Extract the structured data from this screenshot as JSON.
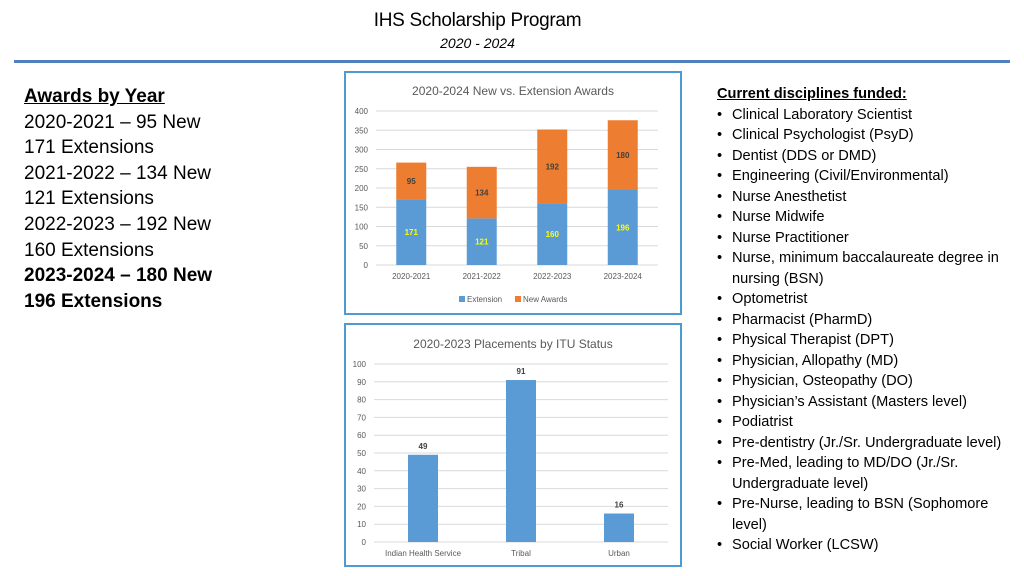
{
  "header": {
    "title": "IHS Scholarship Program",
    "subtitle": "2020 - 2024"
  },
  "awards": {
    "heading": "Awards by Year",
    "lines": [
      {
        "text": "2020-2021 – 95 New",
        "bold": false
      },
      {
        "text": "171 Extensions",
        "bold": false
      },
      {
        "text": "2021-2022 – 134 New",
        "bold": false
      },
      {
        "text": "121 Extensions",
        "bold": false
      },
      {
        "text": "2022-2023 – 192 New",
        "bold": false
      },
      {
        "text": "160 Extensions",
        "bold": false
      },
      {
        "text": "2023-2024 – 180 New",
        "bold": true
      },
      {
        "text": "196 Extensions",
        "bold": true
      }
    ]
  },
  "disciplines": {
    "heading": "Current disciplines funded:",
    "items": [
      "Clinical Laboratory Scientist",
      "Clinical Psychologist (PsyD)",
      "Dentist (DDS or DMD)",
      "Engineering (Civil/Environmental)",
      "Nurse Anesthetist",
      "Nurse Midwife",
      "Nurse Practitioner",
      "Nurse, minimum baccalaureate degree in nursing (BSN)",
      "Optometrist",
      "Pharmacist (PharmD)",
      "Physical Therapist (DPT)",
      "Physician, Allopathy (MD)",
      "Physician, Osteopathy (DO)",
      "Physician’s Assistant (Masters level)",
      "Podiatrist",
      "Pre-dentistry (Jr./Sr. Undergraduate level)",
      "Pre-Med, leading to MD/DO (Jr./Sr. Undergraduate level)",
      "Pre-Nurse, leading to BSN (Sophomore level)",
      "Social Worker (LCSW)"
    ]
  },
  "chart_data": [
    {
      "type": "bar",
      "stacked": true,
      "title": "2020-2024 New vs. Extension Awards",
      "categories": [
        "2020-2021",
        "2021-2022",
        "2022-2023",
        "2023-2024"
      ],
      "series": [
        {
          "name": "Extension",
          "values": [
            171,
            121,
            160,
            196
          ],
          "color": "#5b9bd5",
          "label_color": "#ffff00"
        },
        {
          "name": "New Awards",
          "values": [
            95,
            134,
            192,
            180
          ],
          "color": "#ed7d31",
          "label_color": "#404040"
        }
      ],
      "ylim": [
        0,
        400
      ],
      "yticks": [
        0,
        50,
        100,
        150,
        200,
        250,
        300,
        350,
        400
      ],
      "grid": true,
      "legend": "bottom"
    },
    {
      "type": "bar",
      "title": "2020-2023 Placements by ITU Status",
      "categories": [
        "Indian Health Service",
        "Tribal",
        "Urban"
      ],
      "values": [
        49,
        91,
        16
      ],
      "color": "#5b9bd5",
      "ylim": [
        0,
        100
      ],
      "yticks": [
        0,
        10,
        20,
        30,
        40,
        50,
        60,
        70,
        80,
        90,
        100
      ],
      "grid": true
    }
  ]
}
